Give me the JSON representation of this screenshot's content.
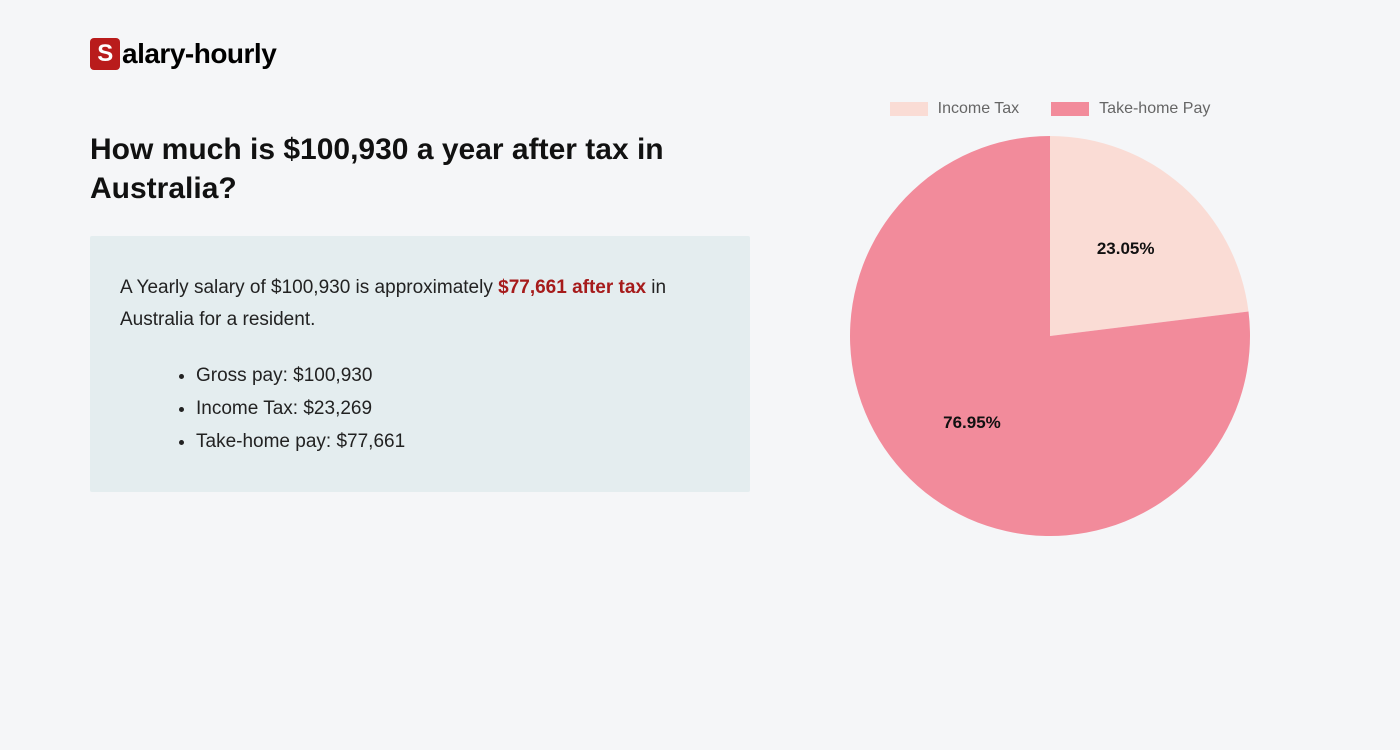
{
  "logo": {
    "badge_letter": "S",
    "rest": "alary-hourly"
  },
  "heading": "How much is $100,930 a year after tax in Australia?",
  "summary": {
    "prefix": "A Yearly salary of $100,930 is approximately ",
    "highlight": "$77,661 after tax",
    "suffix": " in Australia for a resident."
  },
  "bullets": [
    "Gross pay: $100,930",
    "Income Tax: $23,269",
    "Take-home pay: $77,661"
  ],
  "chart": {
    "type": "pie",
    "background_color": "#f5f6f8",
    "legend": [
      {
        "label": "Income Tax",
        "color": "#fadcd5"
      },
      {
        "label": "Take-home Pay",
        "color": "#f28b9b"
      }
    ],
    "slices": [
      {
        "label": "Income Tax",
        "value": 23.05,
        "display": "23.05%",
        "color": "#fadcd5"
      },
      {
        "label": "Take-home Pay",
        "value": 76.95,
        "display": "76.95%",
        "color": "#f28b9b"
      }
    ],
    "label_fontsize": 17,
    "label_fontweight": 700,
    "label_color": "#111111",
    "legend_fontsize": 16,
    "legend_color": "#666666",
    "radius": 200
  },
  "colors": {
    "page_bg": "#f5f6f8",
    "info_bg": "#e4edef",
    "logo_badge_bg": "#b91c1c",
    "highlight_text": "#a61b1b"
  }
}
